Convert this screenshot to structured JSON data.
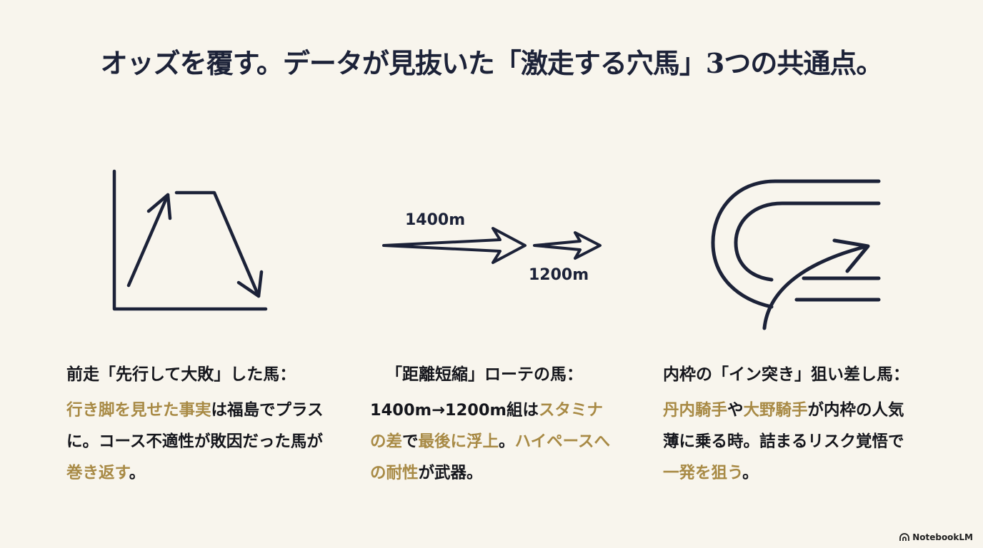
{
  "title": "オッズを覆す。データが見抜いた「激走する穴馬」3つの共通点。",
  "colors": {
    "background": "#f8f5ed",
    "navy": "#1c2238",
    "gold": "#a88a45"
  },
  "diagram2": {
    "label_from": "1400m",
    "label_to": "1200m"
  },
  "columns": [
    {
      "heading": "前走「先行して大敗」した馬：",
      "icon": "rise-plateau-fall-chart-icon",
      "body": [
        {
          "text": "行き脚を見せた事実",
          "hl": true
        },
        {
          "text": "は福島でプラスに。コース不適性が敗因だった馬が",
          "hl": false
        },
        {
          "text": "巻き返す",
          "hl": true
        },
        {
          "text": "。",
          "hl": false
        }
      ]
    },
    {
      "heading": "「距離短縮」ローテの馬：",
      "icon": "distance-shortening-arrows-icon",
      "body": [
        {
          "text": "1400m→1200m組は",
          "hl": false
        },
        {
          "text": "スタミナの差",
          "hl": true
        },
        {
          "text": "で",
          "hl": false
        },
        {
          "text": "最後に浮上",
          "hl": true
        },
        {
          "text": "。",
          "hl": false
        },
        {
          "text": "ハイペースへの耐性",
          "hl": true
        },
        {
          "text": "が武器。",
          "hl": false
        }
      ]
    },
    {
      "heading": "内枠の「イン突き」狙い差し馬：",
      "icon": "inside-track-arrow-icon",
      "body": [
        {
          "text": "丹内騎手",
          "hl": true
        },
        {
          "text": "や",
          "hl": false
        },
        {
          "text": "大野騎手",
          "hl": true
        },
        {
          "text": "が内枠の人気薄に乗る時。詰まるリスク覚悟で",
          "hl": false
        },
        {
          "text": "一発を狙う",
          "hl": true
        },
        {
          "text": "。",
          "hl": false
        }
      ]
    }
  ],
  "brand": "NotebookLM"
}
